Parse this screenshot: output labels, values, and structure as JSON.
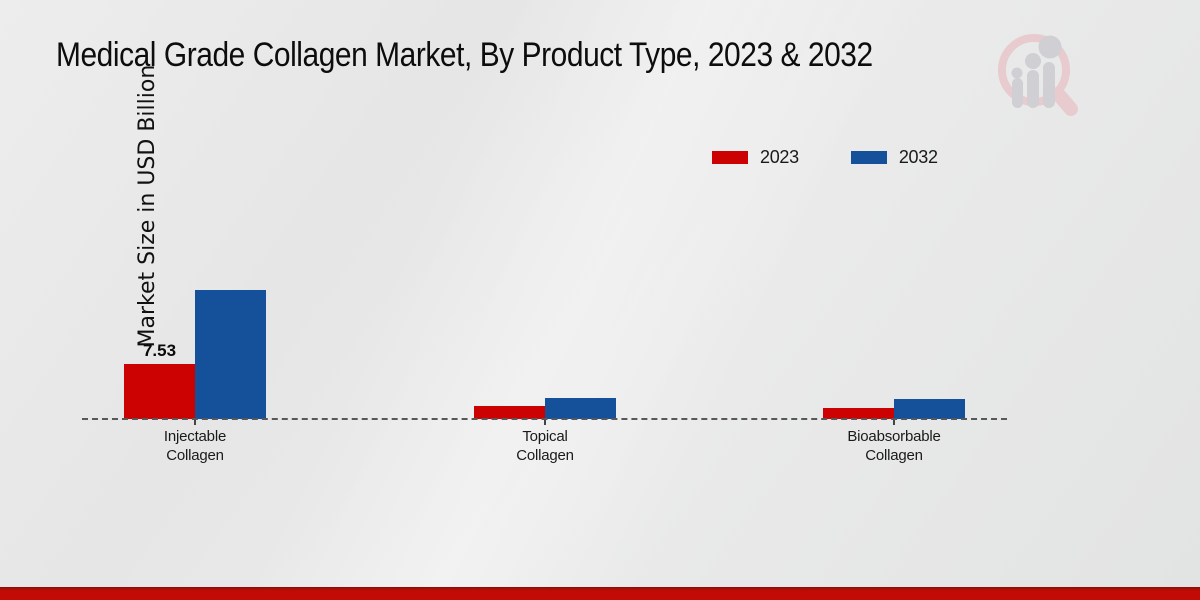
{
  "page": {
    "title": "Medical Grade Collagen Market, By Product Type, 2023 & 2032",
    "footer_color": "#c10b04",
    "background_color": "#e8e8e8",
    "logo": "magnifier-bar-chart-watermark"
  },
  "chart_data": {
    "type": "bar",
    "title": "Medical Grade Collagen Market, By Product Type, 2023 & 2032",
    "ylabel": "Market Size in USD Billion",
    "xlabel": "",
    "categories": [
      "Injectable\nCollagen",
      "Topical\nCollagen",
      "Bioabsorbable\nCollagen"
    ],
    "series": [
      {
        "name": "2023",
        "color": "#cc0202",
        "values": [
          7.53,
          1.8,
          1.5
        ]
      },
      {
        "name": "2032",
        "color": "#15519b",
        "values": [
          17.66,
          2.9,
          2.75
        ]
      }
    ],
    "data_labels": [
      {
        "series_index": 0,
        "category_index": 0,
        "text": "7.53"
      }
    ],
    "ylim": [
      0,
      20
    ],
    "grid": "off",
    "axes_visible": false,
    "baseline_style": "dashed",
    "legend_position": "top-right"
  }
}
